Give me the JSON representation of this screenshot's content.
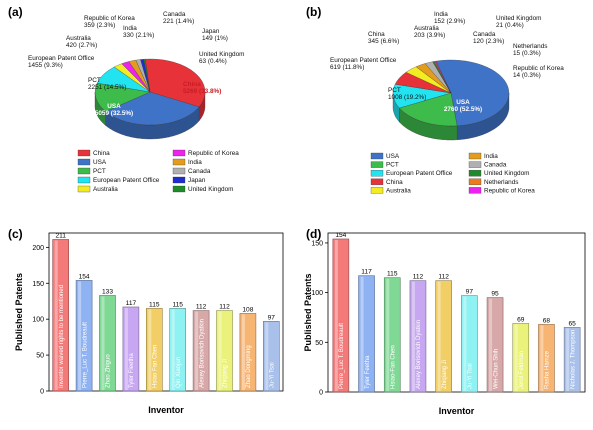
{
  "chart_data": [
    {
      "panel_label": "(a)",
      "type": "pie",
      "legend_placement": "bottom",
      "slices": [
        {
          "name": "China",
          "label_name": "China",
          "value": 5269,
          "percent": "33.8%",
          "color": "#e8323a"
        },
        {
          "name": "USA",
          "label_name": "USA",
          "value": 5059,
          "percent": "32.5%",
          "color": "#3f73c8"
        },
        {
          "name": "PCT",
          "label_name": "PCT",
          "value": 2251,
          "percent": "14.5%",
          "color": "#3dbb4b"
        },
        {
          "name": "European Patent Office",
          "label_name": "European Patent Office",
          "value": 1455,
          "percent": "9.3%",
          "color": "#22e3f0"
        },
        {
          "name": "Australia",
          "label_name": "Australia",
          "value": 420,
          "percent": "2.7%",
          "color": "#f4ec22"
        },
        {
          "name": "Republic of Korea",
          "label_name": "Republic of Korea",
          "value": 359,
          "percent": "2.3%",
          "color": "#ee22ee"
        },
        {
          "name": "India",
          "label_name": "India",
          "value": 330,
          "percent": "2.1%",
          "color": "#e39c1c"
        },
        {
          "name": "Canada",
          "label_name": "Canada",
          "value": 221,
          "percent": "1.4%",
          "color": "#b0b0b0"
        },
        {
          "name": "Japan",
          "label_name": "Japan",
          "value": 149,
          "percent": "1%",
          "color": "#1f2dd0"
        },
        {
          "name": "United Kingdom",
          "label_name": "United Kingdom",
          "value": 63,
          "percent": "0.4%",
          "color": "#1e8a2a"
        }
      ],
      "slice_labels": [
        {
          "name": "China",
          "line1": "China",
          "line2": "5269 (33.8%)"
        },
        {
          "name": "USA",
          "line1": "USA",
          "line2": "5059 (32.5%)"
        },
        {
          "name": "PCT",
          "line1": "PCT",
          "line2": "2251 (14.5%)"
        },
        {
          "name": "European Patent Office",
          "line1": "European Patent Office",
          "line2": "1455 (9.3%)"
        },
        {
          "name": "Australia",
          "line1": "Australia",
          "line2": "420 (2.7%)"
        },
        {
          "name": "Republic of Korea",
          "line1": "Republic of Korea",
          "line2": "359 (2.3%)"
        },
        {
          "name": "India",
          "line1": "India",
          "line2": "330 (2.1%)"
        },
        {
          "name": "Canada",
          "line1": "Canada",
          "line2": "221 (1.4%)"
        },
        {
          "name": "Japan",
          "line1": "Japan",
          "line2": "149 (1%)"
        },
        {
          "name": "United Kingdom",
          "line1": "United Kingdom",
          "line2": "63 (0.4%)"
        }
      ],
      "legend": [
        [
          "China",
          "Republic of Korea"
        ],
        [
          "USA",
          "India"
        ],
        [
          "PCT",
          "Canada"
        ],
        [
          "European Patent Office",
          "Japan"
        ],
        [
          "Australia",
          "United Kingdom"
        ]
      ]
    },
    {
      "panel_label": "(b)",
      "type": "pie",
      "legend_placement": "bottom",
      "slices": [
        {
          "name": "USA",
          "value": 2760,
          "percent": "52.5%",
          "color": "#3f73c8"
        },
        {
          "name": "PCT",
          "value": 1008,
          "percent": "19.2%",
          "color": "#3dbb4b"
        },
        {
          "name": "European Patent Office",
          "value": 619,
          "percent": "11.8%",
          "color": "#22e3f0"
        },
        {
          "name": "China",
          "value": 345,
          "percent": "6.6%",
          "color": "#e8323a"
        },
        {
          "name": "Australia",
          "value": 203,
          "percent": "3.9%",
          "color": "#f4ec22"
        },
        {
          "name": "India",
          "value": 152,
          "percent": "2.9%",
          "color": "#e39c1c"
        },
        {
          "name": "Canada",
          "value": 120,
          "percent": "2.3%",
          "color": "#b0b0b0"
        },
        {
          "name": "United Kingdom",
          "value": 21,
          "percent": "0.4%",
          "color": "#1e8a2a"
        },
        {
          "name": "Netherlands",
          "value": 15,
          "percent": "0.3%",
          "color": "#f07a1a"
        },
        {
          "name": "Republic of Korea",
          "value": 14,
          "percent": "0.3%",
          "color": "#ee22ee"
        }
      ],
      "slice_labels": [
        {
          "name": "USA",
          "line1": "USA",
          "line2": "2760 (52.5%)"
        },
        {
          "name": "PCT",
          "line1": "PCT",
          "line2": "1008 (19.2%)"
        },
        {
          "name": "European Patent Office",
          "line1": "European Patent Office",
          "line2": "619 (11.8%)"
        },
        {
          "name": "China",
          "line1": "China",
          "line2": "345 (6.6%)"
        },
        {
          "name": "Australia",
          "line1": "Australia",
          "line2": "203 (3.9%)"
        },
        {
          "name": "India",
          "line1": "India",
          "line2": "152 (2.9%)"
        },
        {
          "name": "Canada",
          "line1": "Canada",
          "line2": "120 (2.3%)"
        },
        {
          "name": "United Kingdom",
          "line1": "United Kingdom",
          "line2": "21 (0.4%)"
        },
        {
          "name": "Netherlands",
          "line1": "Netherlands",
          "line2": "15 (0.3%)"
        },
        {
          "name": "Republic of Korea",
          "line1": "Republic of Korea",
          "line2": "14 (0.3%)"
        }
      ],
      "legend": [
        [
          "USA",
          "India"
        ],
        [
          "PCT",
          "Canada"
        ],
        [
          "European Patent Office",
          "United Kingdom"
        ],
        [
          "China",
          "Netherlands"
        ],
        [
          "Australia",
          "Republic of Korea"
        ]
      ]
    },
    {
      "panel_label": "(c)",
      "type": "bar",
      "xlabel": "Inventor",
      "ylabel": "Published Patents",
      "ylim": [
        0,
        220
      ],
      "yticks": [
        0,
        50,
        100,
        150,
        200
      ],
      "categories": [
        "Inventor waived rights to be mentioned",
        "Pierre_Luc T. Boudreault",
        "Zhao Zhiguo",
        "Tyler Fleetha",
        "Hsiao Fan Chen",
        "Qin Xiaojun",
        "Alexey Borisovich Dyatkin",
        "Zhiqiang Ji",
        "Zhao Dongming",
        "Ju-Yi Tsai"
      ],
      "values": [
        211,
        154,
        133,
        117,
        115,
        115,
        112,
        112,
        108,
        97
      ],
      "colors": [
        "#f47a7a",
        "#8fb2f2",
        "#7fd995",
        "#c7a6f2",
        "#f2cf66",
        "#8ef2f2",
        "#d7a8a8",
        "#eaf27c",
        "#f7b574",
        "#a8c0ea"
      ]
    },
    {
      "panel_label": "(d)",
      "type": "bar",
      "xlabel": "Inventor",
      "ylabel": "Published Patents",
      "ylim": [
        0,
        160
      ],
      "yticks": [
        0,
        50,
        100,
        150
      ],
      "categories": [
        "Pierre_Luc T. Boudreault",
        "Tyler Feetha",
        "Hsiao-Fan Chen",
        "Alexey Borisovich Dyatkin",
        "Zhiqiang Ji",
        "Ju-Yi Tsai",
        "Wei-Chun Shih",
        "Jerol Feldman",
        "Rasha Hamze",
        "Nicholas J. Thompson"
      ],
      "values": [
        154,
        117,
        115,
        112,
        112,
        97,
        95,
        69,
        68,
        65
      ],
      "colors": [
        "#f47a7a",
        "#8fb2f2",
        "#7fd995",
        "#c7a6f2",
        "#f2cf66",
        "#8ef2f2",
        "#d7a8a8",
        "#eaf27c",
        "#f7b574",
        "#a8c0ea"
      ]
    }
  ]
}
